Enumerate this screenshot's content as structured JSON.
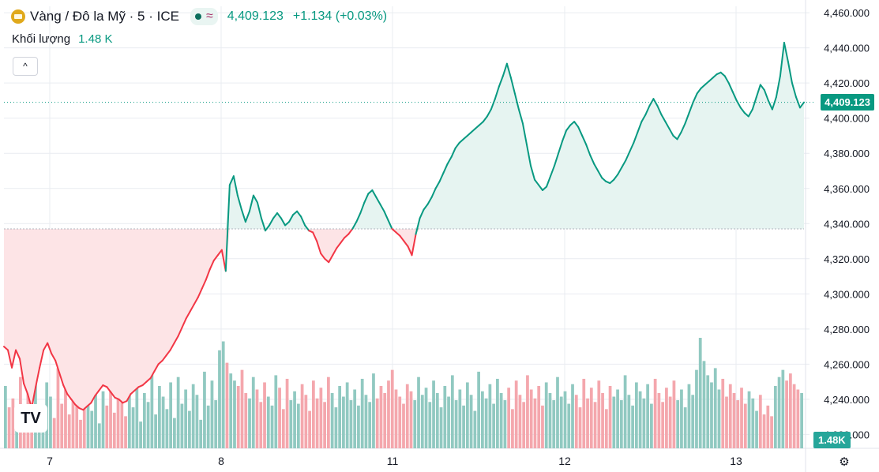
{
  "header": {
    "symbol": "Vàng / Đô la Mỹ · 5 · ICE",
    "last_price": "4,409.123",
    "change": "+1.134 (+0.03%)",
    "volume_label": "Khối lượng",
    "volume_value": "1.48 K",
    "collapse_glyph": "^"
  },
  "badges": {
    "price_tag": "4,409.123",
    "volume_tag": "1.48K"
  },
  "icons": {
    "symbol": "gold-bar-icon",
    "market": "dot-icon",
    "compare": "wave-icon",
    "settings": "gear-icon",
    "logo": "tradingview-logo"
  },
  "logo_text": "TV",
  "settings_glyph": "⚙",
  "colors": {
    "up": "#089981",
    "down": "#f23645",
    "up_fill": "#e6f4f1",
    "down_fill": "#fde4e6",
    "volume_up": "#91c9c1",
    "volume_down": "#f4a7ad",
    "grid": "#e9ecf1"
  },
  "chart_data": {
    "type": "line",
    "baseline": 4337,
    "x_ticks": [
      "7",
      "8",
      "11",
      "12",
      "13"
    ],
    "y_ticks": [
      "4,460.000",
      "4,440.000",
      "4,420.000",
      "4,400.000",
      "4,380.000",
      "4,360.000",
      "4,340.000",
      "4,320.000",
      "4,300.000",
      "4,280.000",
      "4,260.000",
      "4,240.000",
      "4,220.000"
    ],
    "ylim": [
      4213,
      4465
    ],
    "grid": true,
    "series": [
      {
        "values": [
          4270,
          4268,
          4258,
          4268,
          4263,
          4249,
          4243,
          4235,
          4247,
          4258,
          4268,
          4272,
          4266,
          4262,
          4255,
          4248,
          4243,
          4240,
          4237,
          4235,
          4234,
          4236,
          4238,
          4242,
          4245,
          4248,
          4247,
          4244,
          4241,
          4240,
          4238,
          4239,
          4243,
          4245,
          4247,
          4248,
          4250,
          4252,
          4256,
          4260,
          4262,
          4265,
          4268,
          4272,
          4276,
          4281,
          4286,
          4290,
          4294,
          4298,
          4303,
          4308,
          4314,
          4319,
          4322,
          4325,
          4313,
          4362,
          4367,
          4356,
          4348,
          4341,
          4347,
          4356,
          4352,
          4343,
          4336,
          4339,
          4343,
          4346,
          4343,
          4339,
          4341,
          4345,
          4347,
          4344,
          4339,
          4336,
          4335,
          4330,
          4323,
          4320,
          4318,
          4322,
          4326,
          4329,
          4332,
          4334,
          4337,
          4341,
          4346,
          4352,
          4357,
          4359,
          4355,
          4351,
          4347,
          4342,
          4337,
          4335,
          4333,
          4330,
          4327,
          4322,
          4334,
          4343,
          4348,
          4351,
          4355,
          4360,
          4364,
          4369,
          4374,
          4378,
          4383,
          4386,
          4388,
          4390,
          4392,
          4394,
          4396,
          4398,
          4401,
          4405,
          4411,
          4418,
          4424,
          4431,
          4423,
          4414,
          4405,
          4397,
          4385,
          4373,
          4365,
          4362,
          4359,
          4361,
          4367,
          4373,
          4380,
          4387,
          4393,
          4396,
          4398,
          4395,
          4390,
          4385,
          4379,
          4374,
          4370,
          4366,
          4364,
          4363,
          4365,
          4368,
          4372,
          4376,
          4381,
          4386,
          4392,
          4398,
          4402,
          4407,
          4411,
          4407,
          4402,
          4398,
          4394,
          4390,
          4388,
          4392,
          4397,
          4403,
          4409,
          4414,
          4417,
          4419,
          4421,
          4423,
          4425,
          4426,
          4424,
          4420,
          4415,
          4410,
          4406,
          4403,
          4401,
          4405,
          4412,
          4419,
          4416,
          4410,
          4405,
          4412,
          4424,
          4443,
          4432,
          4420,
          4412,
          4406,
          4409
        ]
      }
    ],
    "volume": [
      35,
      23,
      28,
      15,
      40,
      18,
      31,
      26,
      43,
      22,
      13,
      37,
      29,
      17,
      45,
      25,
      33,
      19,
      38,
      27,
      16,
      41,
      30,
      21,
      36,
      14,
      32,
      24,
      44,
      20,
      34,
      28,
      18,
      39,
      23,
      46,
      15,
      31,
      26,
      42,
      19,
      35,
      29,
      22,
      37,
      17,
      40,
      25,
      33,
      21,
      36,
      30,
      16,
      43,
      24,
      38,
      27,
      55,
      60,
      48,
      42,
      38,
      35,
      44,
      31,
      28,
      40,
      33,
      26,
      37,
      29,
      24,
      41,
      34,
      22,
      39,
      27,
      32,
      25,
      36,
      30,
      21,
      38,
      28,
      34,
      26,
      40,
      31,
      23,
      35,
      29,
      37,
      27,
      33,
      24,
      39,
      30,
      26,
      42,
      28,
      35,
      31,
      38,
      44,
      33,
      29,
      25,
      36,
      32,
      27,
      40,
      30,
      34,
      26,
      38,
      31,
      23,
      35,
      29,
      41,
      27,
      33,
      24,
      37,
      30,
      21,
      43,
      32,
      28,
      36,
      25,
      39,
      31,
      27,
      34,
      22,
      38,
      30,
      26,
      41,
      33,
      28,
      35,
      24,
      37,
      31,
      27,
      40,
      29,
      32,
      25,
      36,
      30,
      23,
      39,
      28,
      34,
      26,
      38,
      31,
      22,
      35,
      29,
      33,
      27,
      41,
      30,
      24,
      37,
      32,
      28,
      36,
      25,
      39,
      31,
      26,
      34,
      29,
      38,
      27,
      33,
      23,
      36,
      30,
      44,
      62,
      49,
      41,
      37,
      45,
      33,
      39,
      29,
      36,
      31,
      27,
      34,
      25,
      32,
      28,
      21,
      30,
      19,
      24,
      18,
      35,
      40,
      44,
      38,
      42,
      36,
      33,
      31
    ]
  }
}
